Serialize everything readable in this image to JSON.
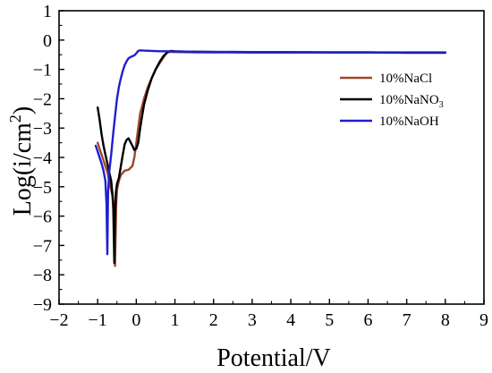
{
  "chart_data": {
    "type": "line",
    "xlabel": "Potential/V",
    "ylabel_main": "Log(i/cm",
    "ylabel_sup": "2",
    "ylabel_close": ")",
    "xlim": [
      -2,
      9
    ],
    "ylim": [
      -9,
      1
    ],
    "xticks": [
      -2,
      -1,
      0,
      1,
      2,
      3,
      4,
      5,
      6,
      7,
      8,
      9
    ],
    "yticks": [
      -9,
      -8,
      -7,
      -6,
      -5,
      -4,
      -3,
      -2,
      -1,
      0,
      1
    ],
    "grid": false,
    "legend_position": "right",
    "series": [
      {
        "name": "10%NaCl",
        "legend_main": "10%NaCl",
        "legend_sub": "",
        "color": "#a0462a",
        "x": [
          -1.0,
          -0.95,
          -0.9,
          -0.85,
          -0.8,
          -0.75,
          -0.7,
          -0.62,
          -0.58,
          -0.55,
          -0.52,
          -0.5,
          -0.45,
          -0.4,
          -0.3,
          -0.2,
          -0.1,
          -0.05,
          0.0,
          0.05,
          0.1,
          0.2,
          0.3,
          0.4,
          0.5,
          0.6,
          0.7,
          0.75,
          0.8,
          0.85,
          1.0,
          1.5,
          2.0,
          3.0,
          4.0,
          5.0,
          6.0,
          7.0,
          8.0
        ],
        "y": [
          -3.5,
          -3.7,
          -3.9,
          -4.1,
          -4.3,
          -4.5,
          -4.8,
          -5.3,
          -6.0,
          -7.7,
          -5.6,
          -5.1,
          -4.8,
          -4.6,
          -4.45,
          -4.42,
          -4.3,
          -4.0,
          -3.5,
          -3.0,
          -2.5,
          -2.0,
          -1.6,
          -1.3,
          -1.0,
          -0.8,
          -0.6,
          -0.5,
          -0.42,
          -0.4,
          -0.41,
          -0.42,
          -0.42,
          -0.42,
          -0.42,
          -0.42,
          -0.42,
          -0.43,
          -0.43
        ]
      },
      {
        "name": "10%NaNO3",
        "legend_main": "10%NaNO",
        "legend_sub": "3",
        "color": "#000000",
        "x": [
          -1.0,
          -0.95,
          -0.9,
          -0.85,
          -0.8,
          -0.75,
          -0.7,
          -0.65,
          -0.6,
          -0.57,
          -0.55,
          -0.53,
          -0.5,
          -0.45,
          -0.4,
          -0.35,
          -0.3,
          -0.25,
          -0.2,
          -0.1,
          -0.05,
          0.0,
          0.05,
          0.1,
          0.15,
          0.2,
          0.3,
          0.4,
          0.5,
          0.6,
          0.7,
          0.8,
          0.9,
          1.0,
          1.5,
          2.0,
          3.0,
          4.0,
          5.0,
          6.0,
          7.0,
          8.0
        ],
        "y": [
          -2.3,
          -2.7,
          -3.2,
          -3.6,
          -3.9,
          -4.2,
          -4.5,
          -4.8,
          -5.5,
          -7.6,
          -6.0,
          -5.2,
          -4.9,
          -4.7,
          -4.3,
          -3.9,
          -3.55,
          -3.4,
          -3.35,
          -3.6,
          -3.75,
          -3.7,
          -3.5,
          -3.0,
          -2.6,
          -2.2,
          -1.7,
          -1.3,
          -1.0,
          -0.75,
          -0.55,
          -0.42,
          -0.37,
          -0.38,
          -0.4,
          -0.41,
          -0.42,
          -0.42,
          -0.42,
          -0.42,
          -0.43,
          -0.43
        ]
      },
      {
        "name": "10%NaOH",
        "legend_main": "10%NaOH",
        "legend_sub": "",
        "color": "#1f1fd0",
        "x": [
          -1.05,
          -1.0,
          -0.95,
          -0.9,
          -0.85,
          -0.8,
          -0.77,
          -0.75,
          -0.73,
          -0.7,
          -0.65,
          -0.6,
          -0.55,
          -0.5,
          -0.45,
          -0.4,
          -0.35,
          -0.3,
          -0.25,
          -0.2,
          -0.15,
          -0.1,
          -0.05,
          0.0,
          0.05,
          0.1,
          0.2,
          0.4,
          0.6,
          0.8,
          1.0,
          2.0,
          3.0,
          4.0,
          5.0,
          6.0,
          7.0,
          8.0
        ],
        "y": [
          -3.6,
          -3.8,
          -4.0,
          -4.2,
          -4.45,
          -4.8,
          -5.6,
          -7.3,
          -5.2,
          -4.5,
          -3.9,
          -3.2,
          -2.6,
          -2.0,
          -1.6,
          -1.3,
          -1.05,
          -0.85,
          -0.72,
          -0.62,
          -0.58,
          -0.55,
          -0.52,
          -0.45,
          -0.37,
          -0.35,
          -0.36,
          -0.37,
          -0.38,
          -0.38,
          -0.39,
          -0.4,
          -0.41,
          -0.41,
          -0.42,
          -0.42,
          -0.42,
          -0.42
        ]
      }
    ]
  }
}
